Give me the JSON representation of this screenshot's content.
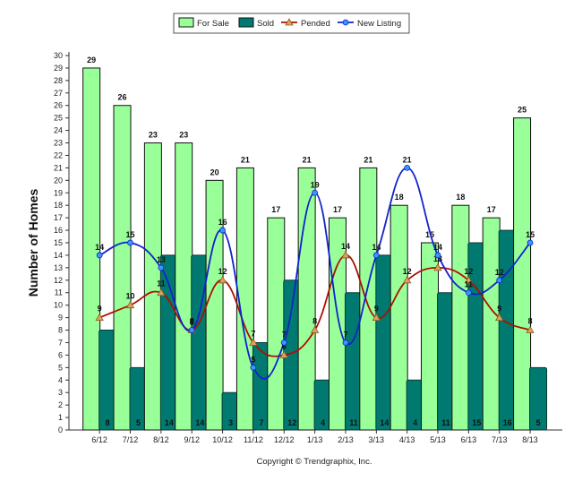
{
  "chart_data": {
    "type": "bar",
    "ylabel": "Number of Homes",
    "xlabel": "",
    "ylim": [
      0,
      30
    ],
    "ytick_step": 1,
    "grid": false,
    "legend_position": "top-center",
    "footer": "Copyright © Trendgraphix, Inc.",
    "categories": [
      "6/12",
      "7/12",
      "8/12",
      "9/12",
      "10/12",
      "11/12",
      "12/12",
      "1/13",
      "2/13",
      "3/13",
      "4/13",
      "5/13",
      "6/13",
      "7/13",
      "8/13"
    ],
    "series": [
      {
        "name": "For Sale",
        "kind": "bar",
        "color": "#99ff99",
        "values": [
          29,
          26,
          23,
          23,
          20,
          21,
          17,
          21,
          17,
          21,
          18,
          15,
          18,
          17,
          25
        ]
      },
      {
        "name": "Sold",
        "kind": "bar",
        "color": "#007a70",
        "values": [
          8,
          5,
          14,
          14,
          3,
          7,
          12,
          4,
          11,
          14,
          4,
          11,
          15,
          16,
          5
        ]
      },
      {
        "name": "Pended",
        "kind": "line",
        "color": "#aa1100",
        "marker": "triangle",
        "marker_color": "#e0a060",
        "values": [
          9,
          10,
          11,
          8,
          12,
          7,
          6,
          8,
          14,
          9,
          12,
          13,
          12,
          9,
          8
        ]
      },
      {
        "name": "New Listing",
        "kind": "line",
        "color": "#1122cc",
        "marker": "circle",
        "marker_color": "#3399ff",
        "values": [
          14,
          15,
          13,
          8,
          16,
          5,
          7,
          19,
          7,
          14,
          21,
          14,
          11,
          12,
          15
        ]
      }
    ]
  }
}
